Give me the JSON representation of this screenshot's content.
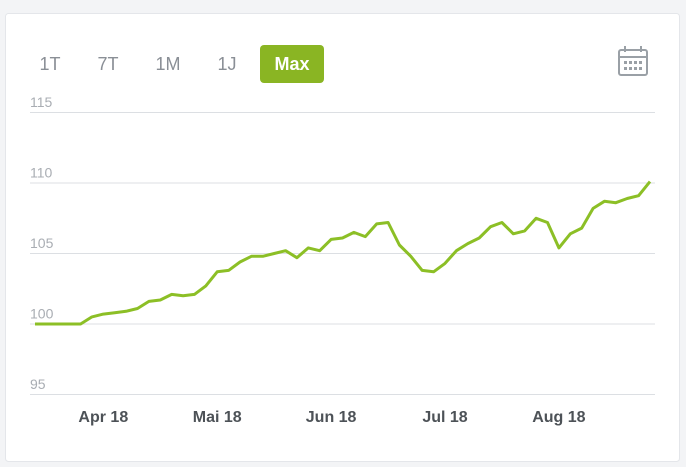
{
  "range_buttons": [
    "1T",
    "7T",
    "1M",
    "1J",
    "Max"
  ],
  "selected_range": 4,
  "chart_data": {
    "type": "line",
    "categories": [
      null,
      null,
      null,
      null,
      null,
      null,
      "Apr 18",
      null,
      null,
      null,
      null,
      null,
      null,
      null,
      null,
      null,
      "Mai 18",
      null,
      null,
      null,
      null,
      null,
      null,
      null,
      null,
      null,
      "Jun 18",
      null,
      null,
      null,
      null,
      null,
      null,
      null,
      null,
      null,
      "Jul 18",
      null,
      null,
      null,
      null,
      null,
      null,
      null,
      null,
      null,
      "Aug 18",
      null,
      null,
      null,
      null,
      null,
      null,
      null,
      null
    ],
    "series": [
      {
        "color": "#8cbf26",
        "values": [
          100.0,
          100.0,
          100.0,
          100.0,
          100.0,
          100.5,
          100.7,
          100.8,
          100.9,
          101.1,
          101.6,
          101.7,
          102.1,
          102.0,
          102.1,
          102.7,
          103.7,
          103.8,
          104.4,
          104.8,
          104.8,
          105.0,
          105.2,
          104.7,
          105.4,
          105.2,
          106.0,
          106.1,
          106.5,
          106.2,
          107.1,
          107.2,
          105.6,
          104.8,
          103.8,
          103.7,
          104.3,
          105.2,
          105.7,
          106.1,
          106.9,
          107.2,
          106.4,
          106.6,
          107.5,
          107.2,
          105.4,
          106.4,
          106.8,
          108.2,
          108.7,
          108.6,
          108.9,
          109.1,
          110.1
        ]
      }
    ],
    "ylim": [
      95,
      115
    ],
    "yticks": [
      95,
      100,
      105,
      110,
      115
    ],
    "grid": true
  }
}
